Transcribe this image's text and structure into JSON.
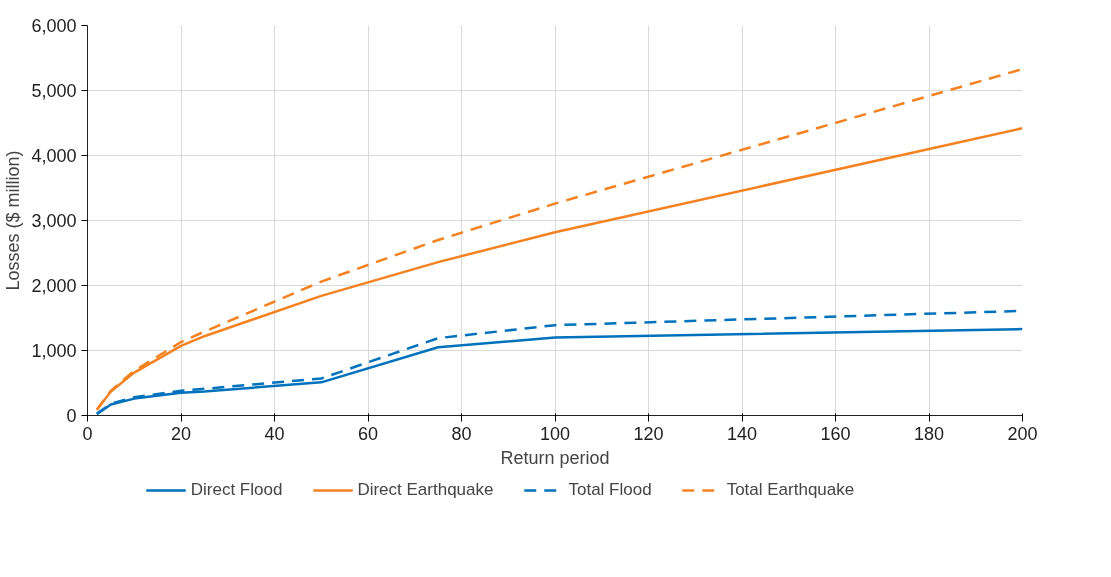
{
  "chart_data": {
    "type": "line",
    "xlabel": "Return period",
    "ylabel": "Losses ($ million)",
    "x": [
      2,
      5,
      10,
      20,
      25,
      50,
      75,
      100,
      200
    ],
    "series": [
      {
        "name": "Direct Flood",
        "color": "#0072bc",
        "line_style": "solid",
        "values": [
          20,
          170,
          260,
          350,
          370,
          510,
          1050,
          1200,
          1330
        ]
      },
      {
        "name": "Direct Earthquake",
        "color": "#f58220",
        "line_style": "solid",
        "values": [
          90,
          370,
          660,
          1070,
          1220,
          1840,
          2360,
          2820,
          4420
        ]
      },
      {
        "name": "Total Flood",
        "color": "#0072bc",
        "line_style": "dashed",
        "values": [
          30,
          180,
          280,
          380,
          410,
          570,
          1190,
          1390,
          1610
        ]
      },
      {
        "name": "Total Earthquake",
        "color": "#f58220",
        "line_style": "dashed",
        "values": [
          90,
          380,
          690,
          1130,
          1290,
          2060,
          2700,
          3260,
          5330
        ]
      }
    ],
    "xlim": [
      0,
      200
    ],
    "xticks": [
      0,
      20,
      40,
      60,
      80,
      100,
      120,
      140,
      160,
      180,
      200
    ],
    "ylim": [
      0,
      6000
    ],
    "yticks": [
      {
        "value": 0,
        "label": "0"
      },
      {
        "value": 1000,
        "label": "1,000"
      },
      {
        "value": 2000,
        "label": "2,000"
      },
      {
        "value": 3000,
        "label": "3,000"
      },
      {
        "value": 4000,
        "label": "4,000"
      },
      {
        "value": 5000,
        "label": "5,000"
      },
      {
        "value": 6000,
        "label": "6,000"
      }
    ],
    "grid": true,
    "legend": "bottom",
    "marker": "none"
  }
}
